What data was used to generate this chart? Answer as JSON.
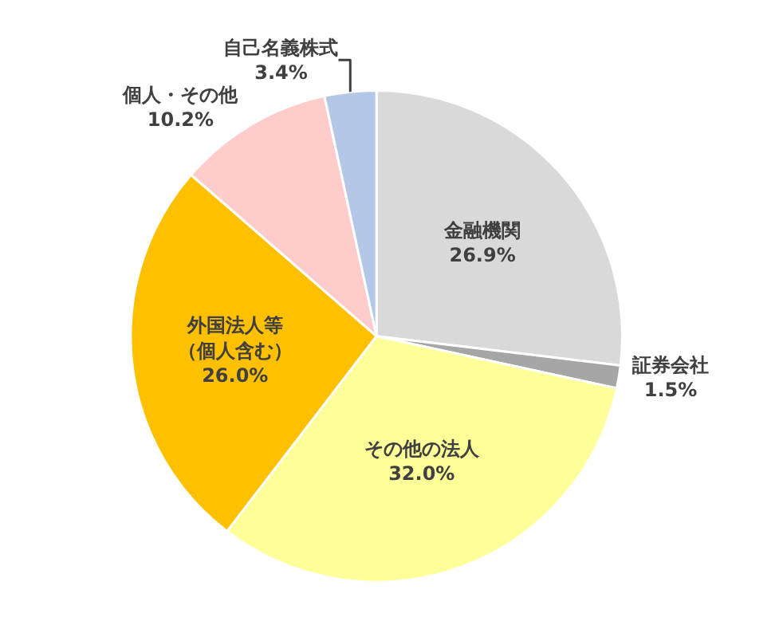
{
  "chart_data": {
    "type": "pie",
    "categories": [
      "金融機関",
      "証券会社",
      "その他の法人",
      "外国法人等（個人含む）",
      "個人・その他",
      "自己名義株式"
    ],
    "values": [
      26.9,
      1.5,
      32.0,
      26.0,
      10.2,
      3.4
    ],
    "colors": [
      "#d9d9d9",
      "#a6a6a6",
      "#ffff99",
      "#ffc000",
      "#ffcccc",
      "#b4c7e7"
    ],
    "value_labels": [
      "26.9%",
      "1.5%",
      "32.0%",
      "26.0%",
      "10.2%",
      "3.4%"
    ],
    "legend": false
  }
}
